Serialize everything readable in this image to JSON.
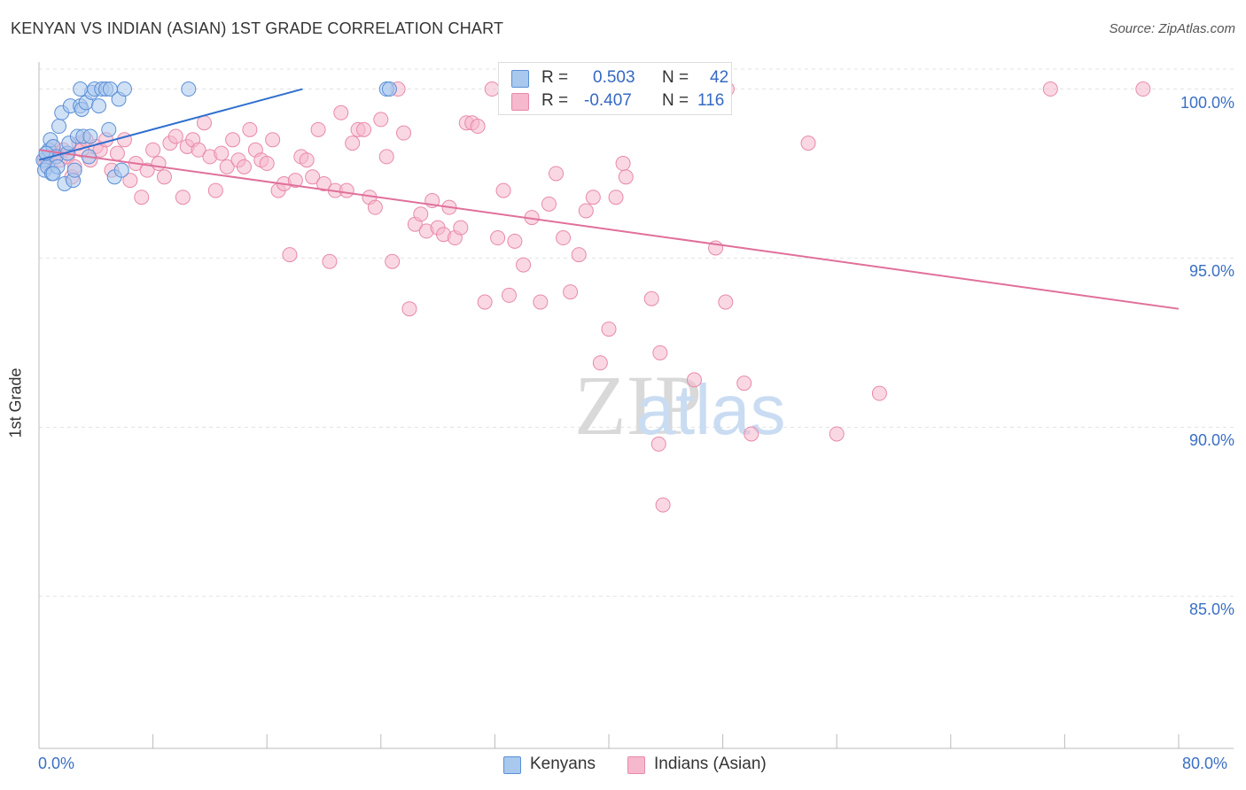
{
  "header": {
    "title": "KENYAN VS INDIAN (ASIAN) 1ST GRADE CORRELATION CHART",
    "source": "Source: ZipAtlas.com"
  },
  "watermark": {
    "zip": "ZIP",
    "atlas": "atlas"
  },
  "legend": {
    "rows": [
      {
        "r_label": "R =",
        "r_value": "0.503",
        "n_label": "N =",
        "n_value": "42",
        "color": "#a9c8ee"
      },
      {
        "r_label": "R =",
        "r_value": "-0.407",
        "n_label": "N =",
        "n_value": "116",
        "color": "#f6b8cc"
      }
    ]
  },
  "bottom_legend": {
    "kenyans": "Kenyans",
    "indians": "Indians (Asian)"
  },
  "colors": {
    "kenyan_fill": "#a9c8ee",
    "kenyan_stroke": "#5b8fd6",
    "kenyan_line": "#2f6fcf",
    "indian_fill": "#f6b8cc",
    "indian_stroke": "#e88aa8",
    "indian_line": "#e0709a",
    "tick_text": "#3a6fc4"
  },
  "chart_data": {
    "type": "scatter",
    "title": "KENYAN VS INDIAN (ASIAN) 1ST GRADE CORRELATION CHART",
    "xlabel": "",
    "ylabel": "1st Grade",
    "xlim": [
      0,
      80
    ],
    "ylim": [
      80.5,
      100.8
    ],
    "x_tick_labels": [
      "0.0%",
      "80.0%"
    ],
    "y_ticks": [
      85,
      90,
      95,
      100
    ],
    "y_tick_labels": [
      "85.0%",
      "90.0%",
      "95.0%",
      "100.0%"
    ],
    "grid": true,
    "series": [
      {
        "name": "Kenyans",
        "r": 0.503,
        "n": 42,
        "trend": {
          "x": [
            0,
            18.5
          ],
          "y": [
            97.9,
            100.0
          ]
        },
        "points": [
          [
            0.3,
            97.9
          ],
          [
            0.4,
            97.6
          ],
          [
            0.5,
            98.1
          ],
          [
            0.6,
            97.7
          ],
          [
            0.7,
            98.2
          ],
          [
            0.8,
            98.5
          ],
          [
            0.9,
            97.5
          ],
          [
            1.0,
            98.3
          ],
          [
            1.2,
            98.0
          ],
          [
            1.3,
            97.7
          ],
          [
            1.4,
            98.9
          ],
          [
            1.6,
            99.3
          ],
          [
            1.8,
            97.2
          ],
          [
            2.0,
            98.1
          ],
          [
            2.1,
            98.4
          ],
          [
            2.2,
            99.5
          ],
          [
            2.4,
            97.3
          ],
          [
            2.5,
            97.6
          ],
          [
            2.7,
            98.6
          ],
          [
            2.9,
            99.5
          ],
          [
            3.0,
            99.4
          ],
          [
            3.1,
            98.6
          ],
          [
            3.3,
            99.6
          ],
          [
            3.5,
            98.0
          ],
          [
            3.6,
            98.6
          ],
          [
            3.7,
            99.9
          ],
          [
            3.9,
            100.0
          ],
          [
            4.2,
            99.5
          ],
          [
            4.4,
            100.0
          ],
          [
            4.7,
            100.0
          ],
          [
            4.9,
            98.8
          ],
          [
            5.0,
            100.0
          ],
          [
            5.3,
            97.4
          ],
          [
            5.6,
            99.7
          ],
          [
            5.8,
            97.6
          ],
          [
            6.0,
            100.0
          ],
          [
            2.9,
            100.0
          ],
          [
            10.5,
            100.0
          ],
          [
            24.4,
            100.0
          ],
          [
            24.6,
            100.0
          ],
          [
            0.5,
            98.1
          ],
          [
            1.0,
            97.5
          ]
        ]
      },
      {
        "name": "Indians (Asian)",
        "r": -0.407,
        "n": 116,
        "trend": {
          "x": [
            0,
            80
          ],
          "y": [
            98.2,
            93.5
          ]
        },
        "points": [
          [
            0.4,
            97.9
          ],
          [
            0.6,
            97.8
          ],
          [
            0.8,
            98.0
          ],
          [
            1.0,
            98.3
          ],
          [
            1.2,
            98.1
          ],
          [
            1.5,
            97.9
          ],
          [
            1.7,
            98.2
          ],
          [
            2.0,
            98.0
          ],
          [
            2.3,
            97.4
          ],
          [
            2.5,
            97.7
          ],
          [
            2.8,
            98.4
          ],
          [
            3.0,
            98.2
          ],
          [
            3.3,
            98.5
          ],
          [
            3.6,
            97.9
          ],
          [
            4.0,
            98.3
          ],
          [
            4.3,
            98.2
          ],
          [
            4.7,
            98.5
          ],
          [
            5.1,
            97.6
          ],
          [
            5.5,
            98.1
          ],
          [
            6.0,
            98.5
          ],
          [
            6.4,
            97.3
          ],
          [
            6.8,
            97.8
          ],
          [
            7.2,
            96.8
          ],
          [
            7.6,
            97.6
          ],
          [
            8.0,
            98.2
          ],
          [
            8.4,
            97.8
          ],
          [
            8.8,
            97.4
          ],
          [
            9.2,
            98.4
          ],
          [
            9.6,
            98.6
          ],
          [
            10.1,
            96.8
          ],
          [
            10.4,
            98.3
          ],
          [
            10.8,
            98.5
          ],
          [
            11.2,
            98.2
          ],
          [
            11.6,
            99.0
          ],
          [
            12.0,
            98.0
          ],
          [
            12.4,
            97.0
          ],
          [
            12.8,
            98.1
          ],
          [
            13.2,
            97.7
          ],
          [
            13.6,
            98.5
          ],
          [
            14.0,
            97.9
          ],
          [
            14.4,
            97.7
          ],
          [
            14.8,
            98.8
          ],
          [
            15.2,
            98.2
          ],
          [
            15.6,
            97.9
          ],
          [
            16.0,
            97.8
          ],
          [
            16.4,
            98.5
          ],
          [
            16.8,
            97.0
          ],
          [
            17.2,
            97.2
          ],
          [
            17.6,
            95.1
          ],
          [
            18.0,
            97.3
          ],
          [
            18.4,
            98.0
          ],
          [
            18.8,
            97.9
          ],
          [
            19.2,
            97.4
          ],
          [
            19.6,
            98.8
          ],
          [
            20.0,
            97.2
          ],
          [
            20.4,
            94.9
          ],
          [
            20.8,
            97.0
          ],
          [
            21.2,
            99.3
          ],
          [
            21.6,
            97.0
          ],
          [
            22.0,
            98.4
          ],
          [
            22.4,
            98.8
          ],
          [
            22.8,
            98.8
          ],
          [
            23.2,
            96.8
          ],
          [
            23.6,
            96.5
          ],
          [
            24.0,
            99.1
          ],
          [
            24.4,
            98.0
          ],
          [
            24.8,
            94.9
          ],
          [
            25.2,
            100.0
          ],
          [
            25.6,
            98.7
          ],
          [
            26.0,
            93.5
          ],
          [
            26.4,
            96.0
          ],
          [
            26.8,
            96.3
          ],
          [
            27.2,
            95.8
          ],
          [
            27.6,
            96.7
          ],
          [
            28.0,
            95.9
          ],
          [
            28.4,
            95.7
          ],
          [
            28.8,
            96.5
          ],
          [
            29.2,
            95.6
          ],
          [
            29.6,
            95.9
          ],
          [
            30.0,
            99.0
          ],
          [
            30.4,
            99.0
          ],
          [
            30.8,
            98.9
          ],
          [
            31.3,
            93.7
          ],
          [
            31.8,
            100.0
          ],
          [
            32.2,
            95.6
          ],
          [
            32.6,
            97.0
          ],
          [
            33.0,
            93.9
          ],
          [
            33.4,
            95.5
          ],
          [
            34.0,
            94.8
          ],
          [
            34.6,
            96.2
          ],
          [
            35.2,
            93.7
          ],
          [
            35.8,
            96.6
          ],
          [
            36.3,
            97.5
          ],
          [
            36.8,
            95.6
          ],
          [
            37.3,
            94.0
          ],
          [
            37.9,
            95.1
          ],
          [
            38.4,
            96.4
          ],
          [
            38.9,
            96.8
          ],
          [
            39.4,
            91.9
          ],
          [
            40.0,
            92.9
          ],
          [
            40.5,
            96.8
          ],
          [
            41.0,
            97.8
          ],
          [
            41.2,
            97.4
          ],
          [
            43.0,
            93.8
          ],
          [
            43.6,
            92.2
          ],
          [
            43.5,
            89.5
          ],
          [
            43.8,
            87.7
          ],
          [
            46.0,
            91.4
          ],
          [
            47.5,
            95.3
          ],
          [
            48.2,
            93.7
          ],
          [
            48.3,
            100.0
          ],
          [
            49.5,
            91.3
          ],
          [
            50.0,
            89.8
          ],
          [
            54.0,
            98.4
          ],
          [
            56.0,
            89.8
          ],
          [
            59.0,
            91.0
          ],
          [
            71.0,
            100.0
          ],
          [
            77.5,
            100.0
          ]
        ]
      }
    ]
  }
}
